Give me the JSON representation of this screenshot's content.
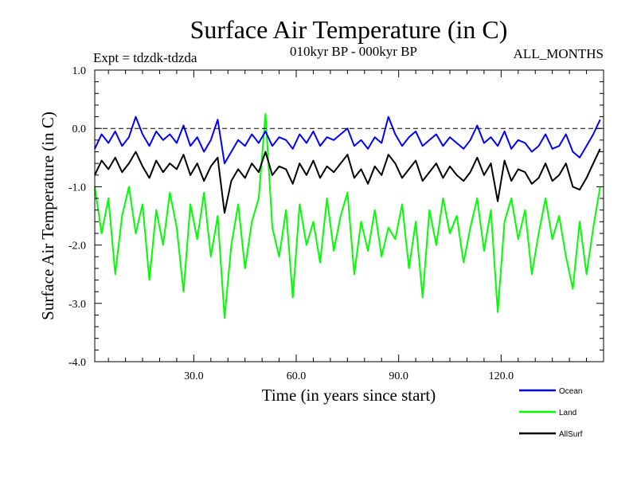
{
  "chart_data": {
    "type": "line",
    "title": "Surface Air Temperature (in C)",
    "experiment": "Expt = tdzdk-tdzda",
    "period": "010kyr BP - 000kyr BP",
    "season": "ALL_MONTHS",
    "xlabel": "Time (in years since start)",
    "ylabel": "Surface Air Temperature (in C)",
    "xlim": [
      1,
      150
    ],
    "ylim": [
      -4.0,
      1.0
    ],
    "xticks": [
      30,
      60,
      90,
      120
    ],
    "xtick_labels": [
      "30.0",
      "60.0",
      "90.0",
      "120.0"
    ],
    "yticks": [
      1.0,
      0.0,
      -1.0,
      -2.0,
      -3.0,
      -4.0
    ],
    "ytick_labels": [
      "1.0",
      "0.0",
      "-1.0",
      "-2.0",
      "-3.0",
      "-4.0"
    ],
    "reference_line": 0.0,
    "legend_position": "bottom-right, below plot",
    "series": [
      {
        "name": "Ocean",
        "color": "#0000ff",
        "x": [
          1,
          3,
          5,
          7,
          9,
          11,
          13,
          15,
          17,
          19,
          21,
          23,
          25,
          27,
          29,
          31,
          33,
          35,
          37,
          39,
          41,
          43,
          45,
          47,
          49,
          51,
          53,
          55,
          57,
          59,
          61,
          63,
          65,
          67,
          69,
          71,
          73,
          75,
          77,
          79,
          81,
          83,
          85,
          87,
          89,
          91,
          93,
          95,
          97,
          99,
          101,
          103,
          105,
          107,
          109,
          111,
          113,
          115,
          117,
          119,
          121,
          123,
          125,
          127,
          129,
          131,
          133,
          135,
          137,
          139,
          141,
          143,
          145,
          147,
          149
        ],
        "values": [
          -0.35,
          -0.1,
          -0.25,
          -0.05,
          -0.3,
          -0.15,
          0.2,
          -0.1,
          -0.3,
          -0.05,
          -0.2,
          -0.1,
          -0.25,
          0.05,
          -0.3,
          -0.15,
          -0.4,
          -0.2,
          0.15,
          -0.6,
          -0.4,
          -0.2,
          -0.3,
          -0.1,
          -0.25,
          -0.05,
          -0.3,
          -0.15,
          -0.2,
          -0.35,
          -0.1,
          -0.25,
          -0.05,
          -0.3,
          -0.15,
          -0.2,
          -0.1,
          0.0,
          -0.3,
          -0.2,
          -0.35,
          -0.15,
          -0.25,
          0.2,
          -0.1,
          -0.3,
          -0.15,
          -0.05,
          -0.3,
          -0.2,
          -0.1,
          -0.3,
          -0.15,
          -0.25,
          -0.35,
          -0.2,
          0.05,
          -0.25,
          -0.15,
          -0.3,
          -0.05,
          -0.35,
          -0.2,
          -0.25,
          -0.4,
          -0.3,
          -0.1,
          -0.35,
          -0.3,
          -0.1,
          -0.4,
          -0.5,
          -0.3,
          -0.1,
          0.15
        ]
      },
      {
        "name": "Land",
        "color": "#00ff00",
        "x": [
          1,
          3,
          5,
          7,
          9,
          11,
          13,
          15,
          17,
          19,
          21,
          23,
          25,
          27,
          29,
          31,
          33,
          35,
          37,
          39,
          41,
          43,
          45,
          47,
          49,
          51,
          53,
          55,
          57,
          59,
          61,
          63,
          65,
          67,
          69,
          71,
          73,
          75,
          77,
          79,
          81,
          83,
          85,
          87,
          89,
          91,
          93,
          95,
          97,
          99,
          101,
          103,
          105,
          107,
          109,
          111,
          113,
          115,
          117,
          119,
          121,
          123,
          125,
          127,
          129,
          131,
          133,
          135,
          137,
          139,
          141,
          143,
          145,
          147,
          149
        ],
        "values": [
          -1.0,
          -1.8,
          -1.2,
          -2.5,
          -1.5,
          -1.0,
          -1.8,
          -1.3,
          -2.6,
          -1.4,
          -2.0,
          -1.1,
          -1.7,
          -2.8,
          -1.3,
          -1.9,
          -1.1,
          -2.2,
          -1.5,
          -3.25,
          -2.0,
          -1.3,
          -2.4,
          -1.6,
          -1.2,
          0.25,
          -1.7,
          -2.2,
          -1.4,
          -2.9,
          -1.3,
          -2.0,
          -1.6,
          -2.3,
          -1.2,
          -2.1,
          -1.5,
          -1.1,
          -2.5,
          -1.6,
          -2.1,
          -1.4,
          -2.2,
          -1.7,
          -1.9,
          -1.3,
          -2.4,
          -1.6,
          -2.9,
          -1.4,
          -2.0,
          -1.2,
          -1.8,
          -1.5,
          -2.3,
          -1.7,
          -1.2,
          -2.1,
          -1.4,
          -3.15,
          -1.6,
          -1.2,
          -1.9,
          -1.4,
          -2.5,
          -1.8,
          -1.2,
          -1.9,
          -1.5,
          -2.2,
          -2.75,
          -1.6,
          -2.5,
          -1.7,
          -1.0
        ]
      },
      {
        "name": "AllSurf",
        "color": "#000000",
        "x": [
          1,
          3,
          5,
          7,
          9,
          11,
          13,
          15,
          17,
          19,
          21,
          23,
          25,
          27,
          29,
          31,
          33,
          35,
          37,
          39,
          41,
          43,
          45,
          47,
          49,
          51,
          53,
          55,
          57,
          59,
          61,
          63,
          65,
          67,
          69,
          71,
          73,
          75,
          77,
          79,
          81,
          83,
          85,
          87,
          89,
          91,
          93,
          95,
          97,
          99,
          101,
          103,
          105,
          107,
          109,
          111,
          113,
          115,
          117,
          119,
          121,
          123,
          125,
          127,
          129,
          131,
          133,
          135,
          137,
          139,
          141,
          143,
          145,
          147,
          149
        ],
        "values": [
          -0.8,
          -0.55,
          -0.7,
          -0.5,
          -0.75,
          -0.6,
          -0.4,
          -0.65,
          -0.85,
          -0.55,
          -0.75,
          -0.6,
          -0.7,
          -0.45,
          -0.8,
          -0.6,
          -0.9,
          -0.65,
          -0.5,
          -1.45,
          -0.9,
          -0.7,
          -0.85,
          -0.6,
          -0.75,
          -0.4,
          -0.8,
          -0.65,
          -0.7,
          -0.95,
          -0.6,
          -0.8,
          -0.55,
          -0.85,
          -0.65,
          -0.75,
          -0.6,
          -0.45,
          -0.85,
          -0.7,
          -0.95,
          -0.65,
          -0.8,
          -0.45,
          -0.6,
          -0.85,
          -0.7,
          -0.55,
          -0.9,
          -0.75,
          -0.6,
          -0.85,
          -0.65,
          -0.8,
          -0.9,
          -0.75,
          -0.5,
          -0.8,
          -0.6,
          -1.25,
          -0.55,
          -0.9,
          -0.7,
          -0.75,
          -0.95,
          -0.85,
          -0.6,
          -0.9,
          -0.8,
          -0.6,
          -1.0,
          -1.05,
          -0.85,
          -0.6,
          -0.35
        ]
      }
    ]
  }
}
